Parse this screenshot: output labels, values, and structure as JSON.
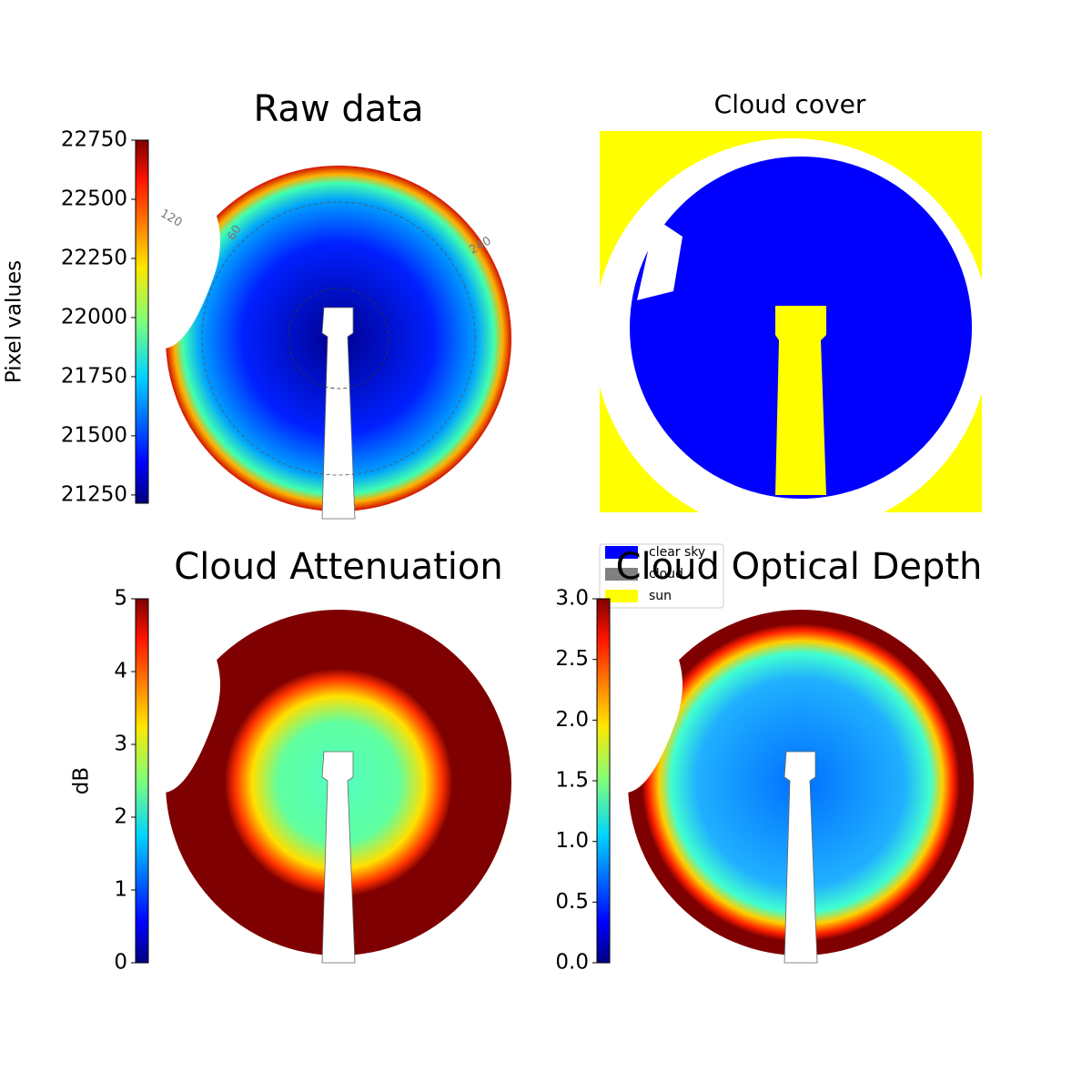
{
  "chart_data": [
    {
      "type": "image",
      "title": "Raw data",
      "colorbar_label": "Pixel values",
      "colormap": "jet",
      "clim": [
        21215,
        22750
      ],
      "cticks": [
        21250,
        21500,
        21750,
        22000,
        22250,
        22500,
        22750
      ],
      "annotations": [
        "120",
        "60",
        "240"
      ]
    },
    {
      "type": "image",
      "title": "Cloud cover",
      "legend": [
        {
          "name": "clear sky",
          "color": "#0000ff"
        },
        {
          "name": "cloud",
          "color": "#808080"
        },
        {
          "name": "sun",
          "color": "#ffff00"
        }
      ]
    },
    {
      "type": "image",
      "title": "Cloud Attenuation",
      "colorbar_label": "dB",
      "colormap": "jet",
      "clim": [
        0,
        5
      ],
      "cticks": [
        0,
        1,
        2,
        3,
        4,
        5
      ]
    },
    {
      "type": "image",
      "title": "Cloud Optical Depth",
      "colormap": "jet",
      "clim": [
        0,
        3
      ],
      "cticks": [
        {
          "value": 0,
          "label": "0.0"
        },
        {
          "value": 0.5,
          "label": "0.5"
        },
        {
          "value": 1,
          "label": "1.0"
        },
        {
          "value": 1.5,
          "label": "1.5"
        },
        {
          "value": 2,
          "label": "2.0"
        },
        {
          "value": 2.5,
          "label": "2.5"
        },
        {
          "value": 3,
          "label": "3.0"
        }
      ]
    }
  ]
}
